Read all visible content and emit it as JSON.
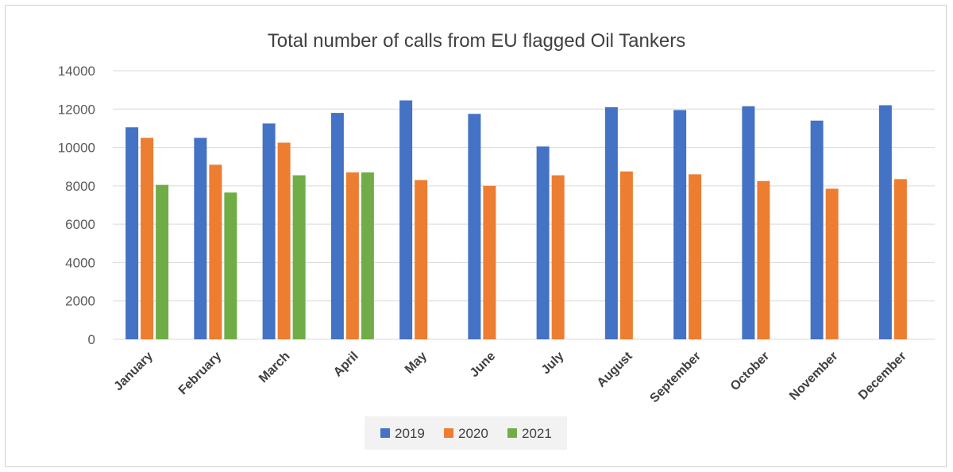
{
  "chart_data": {
    "type": "bar",
    "title": "Total number of calls from EU flagged Oil Tankers",
    "categories": [
      "January",
      "February",
      "March",
      "April",
      "May",
      "June",
      "July",
      "August",
      "September",
      "October",
      "November",
      "December"
    ],
    "series": [
      {
        "name": "2019",
        "color": "#4472C4",
        "values": [
          11050,
          10500,
          11250,
          11800,
          12450,
          11750,
          10050,
          12100,
          11950,
          12150,
          11400,
          12200
        ]
      },
      {
        "name": "2020",
        "color": "#ED7D31",
        "values": [
          10500,
          9100,
          10250,
          8700,
          8300,
          8000,
          8550,
          8750,
          8600,
          8250,
          7850,
          8350
        ]
      },
      {
        "name": "2021",
        "color": "#70AD47",
        "values": [
          8050,
          7650,
          8550,
          8700,
          null,
          null,
          null,
          null,
          null,
          null,
          null,
          null
        ]
      }
    ],
    "yticks": [
      0,
      2000,
      4000,
      6000,
      8000,
      10000,
      12000,
      14000
    ],
    "ylim": [
      0,
      14000
    ],
    "grid": true,
    "legend_position": "bottom"
  }
}
